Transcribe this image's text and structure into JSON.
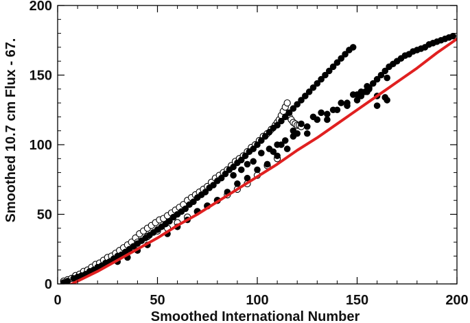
{
  "chart_data": {
    "type": "scatter",
    "title": "",
    "xlabel": "Smoothed International Number",
    "ylabel": "Smoothed 10.7 cm Flux - 67.",
    "xlim": [
      0,
      200
    ],
    "ylim": [
      0,
      200
    ],
    "x_ticks": [
      0,
      50,
      100,
      150,
      200
    ],
    "y_ticks": [
      0,
      50,
      100,
      150,
      200
    ],
    "grid": false,
    "colors": {
      "filled": "#000000",
      "open": "#000000",
      "fit": "#e02020"
    },
    "series": [
      {
        "marker": "filled-circle",
        "x": [
          3,
          5,
          8,
          10,
          12,
          14,
          16,
          18,
          20,
          22,
          24,
          26,
          28,
          30,
          32,
          34,
          36,
          38,
          40,
          42,
          44,
          46,
          48,
          50,
          52,
          54,
          56,
          58,
          60,
          62,
          64,
          66,
          68,
          70,
          72,
          74,
          76,
          78,
          80,
          82,
          84,
          86,
          88,
          90,
          92,
          94,
          96,
          98,
          100,
          102,
          104,
          106,
          108,
          110,
          112,
          114,
          116,
          118,
          120,
          122,
          124,
          126,
          128,
          130,
          132,
          134,
          136,
          138,
          140,
          142,
          144,
          146,
          148,
          150,
          152,
          154,
          156,
          158,
          160,
          162,
          164,
          166,
          168,
          170,
          172,
          174,
          176,
          178,
          180,
          182,
          184,
          186,
          188,
          190,
          192,
          194,
          196,
          198,
          30,
          35,
          40,
          45,
          55,
          60,
          65,
          70,
          75,
          80,
          85,
          90,
          95,
          100,
          105,
          110,
          115,
          125,
          135,
          145,
          155,
          165,
          108,
          112,
          118,
          122,
          128,
          132,
          138,
          142,
          148,
          152,
          156,
          160,
          164,
          95,
          98,
          102,
          106,
          110,
          114,
          118,
          88,
          92,
          140,
          145,
          150,
          130,
          135,
          125,
          120,
          155,
          160,
          165
        ],
        "y": [
          1,
          2,
          4,
          5,
          6,
          7,
          9,
          10,
          12,
          13,
          15,
          16,
          18,
          20,
          21,
          23,
          25,
          27,
          29,
          31,
          33,
          35,
          37,
          39,
          41,
          43,
          45,
          48,
          50,
          52,
          54,
          57,
          59,
          62,
          64,
          66,
          69,
          71,
          74,
          76,
          79,
          82,
          84,
          87,
          89,
          92,
          95,
          97,
          100,
          103,
          106,
          109,
          112,
          114,
          117,
          120,
          123,
          126,
          129,
          132,
          135,
          138,
          141,
          144,
          147,
          150,
          153,
          156,
          159,
          162,
          165,
          168,
          170,
          132,
          135,
          138,
          141,
          144,
          147,
          150,
          153,
          156,
          158,
          160,
          162,
          164,
          165,
          167,
          168,
          169,
          170,
          172,
          173,
          174,
          175,
          176,
          177,
          178,
          16,
          19,
          24,
          28,
          36,
          41,
          46,
          52,
          56,
          60,
          66,
          72,
          76,
          82,
          86,
          92,
          97,
          108,
          118,
          128,
          138,
          148,
          95,
          100,
          110,
          115,
          120,
          123,
          125,
          130,
          136,
          138,
          140,
          135,
          134,
          86,
          88,
          94,
          97,
          100,
          103,
          106,
          78,
          82,
          125,
          130,
          136,
          118,
          122,
          113,
          108,
          142,
          128,
          132
        ]
      },
      {
        "marker": "open-circle",
        "x": [
          3,
          5,
          7,
          9,
          11,
          13,
          15,
          17,
          19,
          21,
          23,
          25,
          27,
          29,
          31,
          33,
          35,
          37,
          39,
          41,
          43,
          45,
          47,
          49,
          51,
          53,
          55,
          57,
          59,
          61,
          63,
          65,
          67,
          69,
          71,
          73,
          75,
          77,
          79,
          81,
          83,
          85,
          87,
          89,
          91,
          93,
          95,
          97,
          99,
          101,
          103,
          105,
          107,
          109,
          110,
          111,
          112,
          113,
          114,
          115,
          116,
          117,
          118,
          119,
          120,
          121,
          122,
          40,
          45,
          50,
          55,
          60,
          65,
          70,
          75,
          80,
          85,
          90,
          95,
          100,
          105,
          110
        ],
        "y": [
          2,
          3,
          4,
          6,
          7,
          9,
          10,
          12,
          14,
          15,
          17,
          19,
          20,
          22,
          24,
          26,
          28,
          30,
          33,
          36,
          38,
          40,
          42,
          44,
          46,
          47,
          49,
          51,
          53,
          55,
          57,
          60,
          62,
          64,
          66,
          68,
          70,
          73,
          76,
          78,
          80,
          82,
          85,
          88,
          90,
          92,
          95,
          98,
          100,
          103,
          106,
          108,
          111,
          114,
          116,
          118,
          121,
          124,
          127,
          130,
          120,
          118,
          116,
          115,
          114,
          114,
          113,
          30,
          34,
          38,
          40,
          44,
          48,
          52,
          56,
          60,
          64,
          68,
          72,
          78,
          85,
          90
        ]
      }
    ],
    "fit_line": {
      "color": "#e02020",
      "x": [
        0,
        10,
        20,
        30,
        40,
        50,
        60,
        70,
        80,
        90,
        100,
        110,
        120,
        130,
        140,
        150,
        160,
        170,
        180,
        190,
        200
      ],
      "y": [
        -5,
        2,
        9,
        17,
        25,
        33,
        42,
        50,
        59,
        68,
        77,
        86,
        96,
        105,
        115,
        125,
        135,
        145,
        155,
        166,
        176
      ]
    }
  }
}
